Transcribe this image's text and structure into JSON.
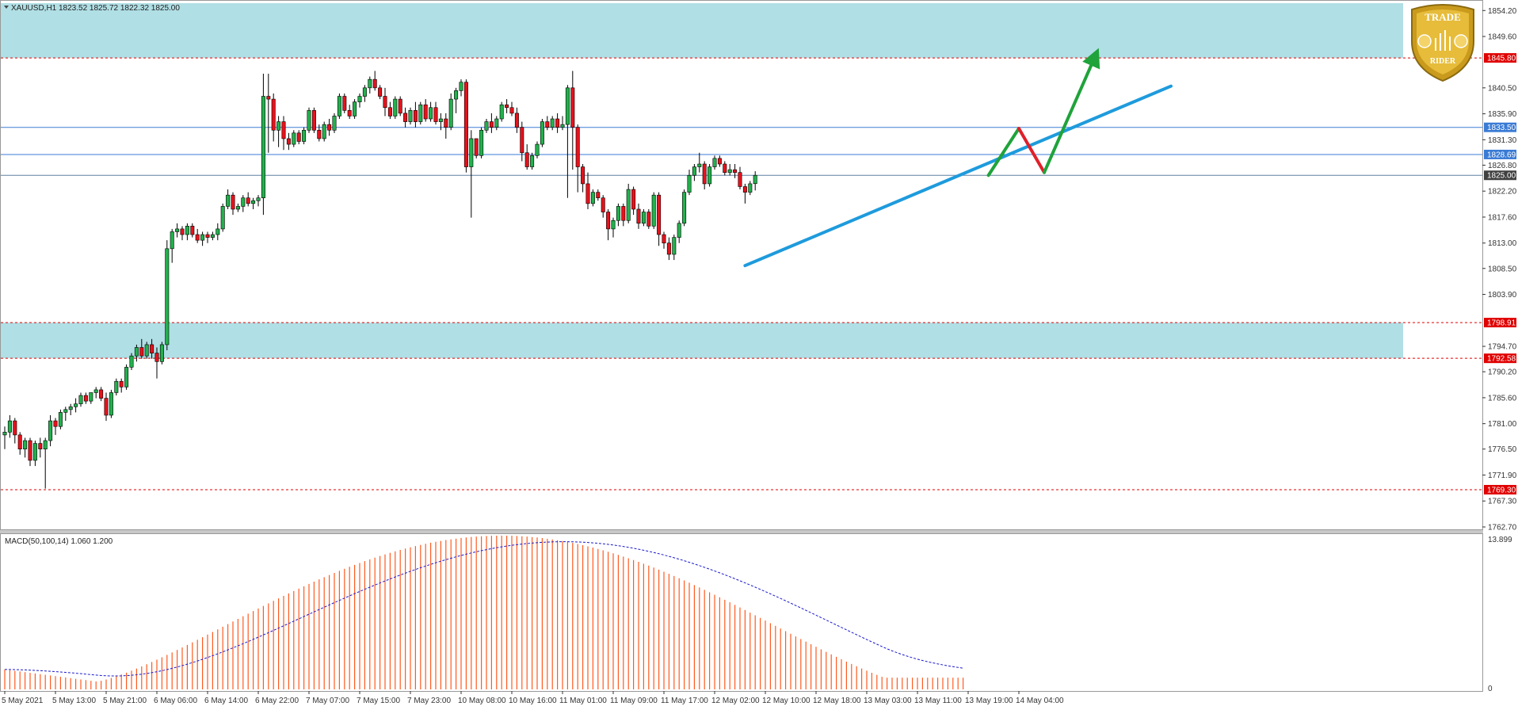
{
  "header": {
    "symbol_label": "XAUUSD,H1",
    "ohlc_label": "1823.52 1825.72 1822.32 1825.00",
    "dropdown_icon": "triangle-down-icon"
  },
  "macd": {
    "label": "MACD(50,100,14) 1.060 1.200",
    "scale_top": "13.899",
    "scale_zero": "0",
    "histogram_color": "#ff5a1f",
    "signal_color": "#1a1acc"
  },
  "price_axis": {
    "ticks": [
      "1854.20",
      "1849.60",
      "1840.50",
      "1835.90",
      "1831.30",
      "1826.80",
      "1822.20",
      "1817.60",
      "1813.00",
      "1808.50",
      "1803.90",
      "1794.70",
      "1790.20",
      "1785.60",
      "1781.00",
      "1776.50",
      "1771.90",
      "1767.30",
      "1762.70"
    ]
  },
  "price_tags": [
    {
      "label": "1845.80",
      "value": 1845.8,
      "color": "#e00000"
    },
    {
      "label": "1833.50",
      "value": 1833.5,
      "color": "#3a7bd5"
    },
    {
      "label": "1828.69",
      "value": 1828.69,
      "color": "#3a7bd5"
    },
    {
      "label": "1825.00",
      "value": 1825.0,
      "color": "#404040"
    },
    {
      "label": "1798.91",
      "value": 1798.91,
      "color": "#e00000"
    },
    {
      "label": "1792.58",
      "value": 1792.58,
      "color": "#e00000"
    },
    {
      "label": "1769.30",
      "value": 1769.3,
      "color": "#e00000"
    }
  ],
  "time_axis": {
    "labels": [
      "5 May 2021",
      "5 May 13:00",
      "5 May 21:00",
      "6 May 06:00",
      "6 May 14:00",
      "6 May 22:00",
      "7 May 07:00",
      "7 May 15:00",
      "7 May 23:00",
      "10 May 08:00",
      "10 May 16:00",
      "11 May 01:00",
      "11 May 09:00",
      "11 May 17:00",
      "12 May 02:00",
      "12 May 10:00",
      "12 May 18:00",
      "13 May 03:00",
      "13 May 11:00",
      "13 May 19:00",
      "14 May 04:00"
    ]
  },
  "zones": [
    {
      "name": "resistance-zone",
      "from": 1845.8,
      "to": 1855.5,
      "color": "#b0dfe5"
    },
    {
      "name": "support-zone",
      "from": 1792.58,
      "to": 1798.91,
      "color": "#b0dfe5"
    }
  ],
  "horizontal_lines": [
    {
      "value": 1833.5,
      "color": "#3a7bd5",
      "style": "solid"
    },
    {
      "value": 1828.69,
      "color": "#3a7bd5",
      "style": "solid"
    },
    {
      "value": 1825.0,
      "color": "#6080a0",
      "style": "solid"
    },
    {
      "value": 1769.3,
      "color": "#e00000",
      "style": "dotted"
    }
  ],
  "logo": {
    "text_top": "TRADE",
    "text_bottom": "RIDER",
    "gold": "#d4a017"
  },
  "chart_data": {
    "type": "candlestick",
    "symbol": "XAUUSD",
    "timeframe": "H1",
    "ylim": [
      1762.7,
      1855.5
    ],
    "candles": [
      [
        1779.0,
        1780.5,
        1776.5,
        1779.5
      ],
      [
        1779.5,
        1782.5,
        1778.5,
        1781.5
      ],
      [
        1781.5,
        1782.0,
        1777.5,
        1779.0
      ],
      [
        1779.0,
        1779.5,
        1775.5,
        1776.5
      ],
      [
        1776.5,
        1778.5,
        1775.0,
        1778.0
      ],
      [
        1778.0,
        1778.5,
        1773.5,
        1774.5
      ],
      [
        1774.5,
        1778.0,
        1773.5,
        1777.5
      ],
      [
        1777.5,
        1778.5,
        1775.0,
        1776.5
      ],
      [
        1776.5,
        1778.5,
        1769.5,
        1778.0
      ],
      [
        1778.0,
        1782.5,
        1777.0,
        1781.5
      ],
      [
        1781.5,
        1782.0,
        1779.0,
        1780.5
      ],
      [
        1780.5,
        1783.5,
        1780.0,
        1783.0
      ],
      [
        1783.0,
        1784.0,
        1781.5,
        1783.5
      ],
      [
        1783.5,
        1784.5,
        1782.5,
        1784.0
      ],
      [
        1784.0,
        1785.5,
        1783.0,
        1784.5
      ],
      [
        1784.5,
        1786.5,
        1784.0,
        1786.0
      ],
      [
        1786.0,
        1786.5,
        1784.5,
        1785.0
      ],
      [
        1785.0,
        1786.5,
        1784.5,
        1786.5
      ],
      [
        1786.5,
        1787.5,
        1785.5,
        1787.0
      ],
      [
        1787.0,
        1787.5,
        1785.0,
        1785.5
      ],
      [
        1785.5,
        1786.5,
        1781.5,
        1782.5
      ],
      [
        1782.5,
        1787.0,
        1782.0,
        1786.5
      ],
      [
        1786.5,
        1789.0,
        1786.0,
        1788.5
      ],
      [
        1788.5,
        1789.0,
        1786.5,
        1787.5
      ],
      [
        1787.5,
        1791.5,
        1787.0,
        1791.0
      ],
      [
        1791.0,
        1793.5,
        1790.5,
        1793.0
      ],
      [
        1793.0,
        1795.0,
        1792.0,
        1794.5
      ],
      [
        1794.5,
        1796.0,
        1792.5,
        1793.0
      ],
      [
        1793.0,
        1795.5,
        1792.5,
        1795.0
      ],
      [
        1795.0,
        1796.0,
        1792.5,
        1793.5
      ],
      [
        1793.5,
        1794.5,
        1789.0,
        1792.0
      ],
      [
        1792.0,
        1795.5,
        1791.5,
        1795.0
      ],
      [
        1795.0,
        1813.5,
        1794.0,
        1812.0
      ],
      [
        1812.0,
        1815.5,
        1809.5,
        1815.0
      ],
      [
        1815.0,
        1816.5,
        1814.0,
        1815.5
      ],
      [
        1815.5,
        1816.0,
        1813.5,
        1814.5
      ],
      [
        1814.5,
        1816.5,
        1813.5,
        1816.0
      ],
      [
        1816.0,
        1816.5,
        1814.0,
        1814.5
      ],
      [
        1814.5,
        1815.5,
        1813.0,
        1813.5
      ],
      [
        1813.5,
        1815.0,
        1812.5,
        1814.5
      ],
      [
        1814.5,
        1815.0,
        1813.0,
        1814.0
      ],
      [
        1814.0,
        1815.0,
        1813.5,
        1814.5
      ],
      [
        1814.5,
        1816.5,
        1813.5,
        1815.5
      ],
      [
        1815.5,
        1820.0,
        1815.0,
        1819.5
      ],
      [
        1819.5,
        1822.5,
        1819.0,
        1821.5
      ],
      [
        1821.5,
        1822.0,
        1818.0,
        1819.0
      ],
      [
        1819.0,
        1820.0,
        1818.5,
        1819.5
      ],
      [
        1819.5,
        1821.5,
        1818.5,
        1821.0
      ],
      [
        1821.0,
        1822.0,
        1819.5,
        1820.0
      ],
      [
        1820.0,
        1821.0,
        1819.0,
        1820.5
      ],
      [
        1820.5,
        1821.5,
        1819.5,
        1821.0
      ],
      [
        1821.0,
        1843.0,
        1818.0,
        1839.0
      ],
      [
        1839.0,
        1843.0,
        1829.0,
        1838.5
      ],
      [
        1838.5,
        1839.5,
        1831.0,
        1833.0
      ],
      [
        1833.0,
        1835.5,
        1830.0,
        1834.5
      ],
      [
        1834.5,
        1835.5,
        1829.5,
        1831.5
      ],
      [
        1831.5,
        1832.5,
        1829.5,
        1830.5
      ],
      [
        1830.5,
        1833.0,
        1830.0,
        1832.5
      ],
      [
        1832.5,
        1833.0,
        1830.5,
        1831.0
      ],
      [
        1831.0,
        1833.5,
        1830.5,
        1833.0
      ],
      [
        1833.0,
        1837.0,
        1832.5,
        1836.5
      ],
      [
        1836.5,
        1837.0,
        1832.5,
        1833.0
      ],
      [
        1833.0,
        1834.0,
        1831.0,
        1831.5
      ],
      [
        1831.5,
        1834.5,
        1831.0,
        1834.0
      ],
      [
        1834.0,
        1835.0,
        1832.0,
        1833.0
      ],
      [
        1833.0,
        1836.0,
        1832.5,
        1835.5
      ],
      [
        1835.5,
        1839.5,
        1835.0,
        1839.0
      ],
      [
        1839.0,
        1839.5,
        1836.0,
        1836.5
      ],
      [
        1836.5,
        1837.5,
        1835.0,
        1835.5
      ],
      [
        1835.5,
        1838.5,
        1835.0,
        1838.0
      ],
      [
        1838.0,
        1839.5,
        1837.0,
        1839.0
      ],
      [
        1839.0,
        1841.0,
        1838.0,
        1840.5
      ],
      [
        1840.5,
        1842.5,
        1839.5,
        1842.0
      ],
      [
        1842.0,
        1843.5,
        1840.0,
        1840.5
      ],
      [
        1840.5,
        1841.0,
        1838.5,
        1839.0
      ],
      [
        1839.0,
        1840.5,
        1835.5,
        1837.0
      ],
      [
        1837.0,
        1838.0,
        1835.0,
        1835.5
      ],
      [
        1835.5,
        1839.0,
        1835.0,
        1838.5
      ],
      [
        1838.5,
        1839.0,
        1835.5,
        1836.0
      ],
      [
        1836.0,
        1837.0,
        1833.5,
        1834.5
      ],
      [
        1834.5,
        1837.0,
        1834.0,
        1836.5
      ],
      [
        1836.5,
        1838.0,
        1833.5,
        1834.5
      ],
      [
        1834.5,
        1838.0,
        1834.0,
        1837.5
      ],
      [
        1837.5,
        1838.5,
        1834.5,
        1835.0
      ],
      [
        1835.0,
        1838.0,
        1834.5,
        1837.0
      ],
      [
        1837.0,
        1838.0,
        1834.0,
        1834.5
      ],
      [
        1834.5,
        1836.0,
        1833.0,
        1835.0
      ],
      [
        1835.0,
        1836.0,
        1831.5,
        1833.5
      ],
      [
        1833.5,
        1839.5,
        1833.0,
        1838.5
      ],
      [
        1838.5,
        1840.5,
        1836.0,
        1840.0
      ],
      [
        1840.0,
        1842.0,
        1839.0,
        1841.5
      ],
      [
        1841.5,
        1842.0,
        1825.5,
        1826.5
      ],
      [
        1826.5,
        1833.0,
        1817.5,
        1831.5
      ],
      [
        1831.5,
        1831.5,
        1828.0,
        1828.5
      ],
      [
        1828.5,
        1833.5,
        1828.0,
        1833.0
      ],
      [
        1833.0,
        1835.0,
        1832.5,
        1834.5
      ],
      [
        1834.5,
        1836.0,
        1832.5,
        1833.5
      ],
      [
        1833.5,
        1835.5,
        1833.0,
        1835.0
      ],
      [
        1835.0,
        1838.0,
        1834.5,
        1837.5
      ],
      [
        1837.5,
        1838.5,
        1836.0,
        1837.0
      ],
      [
        1837.0,
        1838.0,
        1835.5,
        1836.0
      ],
      [
        1836.0,
        1837.0,
        1832.5,
        1833.5
      ],
      [
        1833.5,
        1834.5,
        1827.5,
        1829.0
      ],
      [
        1829.0,
        1830.5,
        1826.0,
        1826.5
      ],
      [
        1826.5,
        1829.0,
        1826.0,
        1828.5
      ],
      [
        1828.5,
        1831.0,
        1828.0,
        1830.5
      ],
      [
        1830.5,
        1835.0,
        1830.0,
        1834.5
      ],
      [
        1834.5,
        1835.5,
        1833.0,
        1833.5
      ],
      [
        1833.5,
        1835.5,
        1833.0,
        1835.0
      ],
      [
        1835.0,
        1836.0,
        1832.5,
        1833.5
      ],
      [
        1833.5,
        1835.5,
        1833.0,
        1834.0
      ],
      [
        1834.0,
        1841.0,
        1821.0,
        1840.5
      ],
      [
        1840.5,
        1843.5,
        1826.0,
        1833.5
      ],
      [
        1833.5,
        1834.0,
        1822.0,
        1826.5
      ],
      [
        1826.5,
        1827.0,
        1822.0,
        1823.5
      ],
      [
        1823.5,
        1825.5,
        1819.0,
        1820.0
      ],
      [
        1820.0,
        1822.5,
        1819.5,
        1822.0
      ],
      [
        1822.0,
        1822.5,
        1820.5,
        1821.0
      ],
      [
        1821.0,
        1821.5,
        1817.5,
        1818.5
      ],
      [
        1818.5,
        1819.0,
        1813.5,
        1815.5
      ],
      [
        1815.5,
        1817.5,
        1814.0,
        1817.0
      ],
      [
        1817.0,
        1820.0,
        1816.0,
        1819.5
      ],
      [
        1819.5,
        1820.0,
        1816.0,
        1817.0
      ],
      [
        1817.0,
        1823.5,
        1816.5,
        1822.5
      ],
      [
        1822.5,
        1823.0,
        1818.0,
        1819.0
      ],
      [
        1819.0,
        1820.0,
        1815.5,
        1816.5
      ],
      [
        1816.5,
        1819.0,
        1816.0,
        1818.5
      ],
      [
        1818.5,
        1819.0,
        1815.5,
        1816.0
      ],
      [
        1816.0,
        1822.0,
        1815.5,
        1821.5
      ],
      [
        1821.5,
        1822.0,
        1812.5,
        1814.5
      ],
      [
        1814.5,
        1815.0,
        1812.0,
        1813.0
      ],
      [
        1813.0,
        1814.0,
        1810.0,
        1811.0
      ],
      [
        1811.0,
        1814.5,
        1810.0,
        1814.0
      ],
      [
        1814.0,
        1817.0,
        1813.0,
        1816.5
      ],
      [
        1816.5,
        1822.5,
        1816.0,
        1822.0
      ],
      [
        1822.0,
        1826.0,
        1821.5,
        1825.0
      ],
      [
        1825.0,
        1827.0,
        1824.0,
        1826.5
      ],
      [
        1826.5,
        1829.0,
        1825.5,
        1827.0
      ],
      [
        1827.0,
        1827.5,
        1822.5,
        1823.5
      ],
      [
        1823.5,
        1827.0,
        1823.0,
        1826.5
      ],
      [
        1826.5,
        1828.5,
        1826.0,
        1828.0
      ],
      [
        1828.0,
        1828.5,
        1826.5,
        1827.0
      ],
      [
        1827.0,
        1827.5,
        1825.0,
        1825.5
      ],
      [
        1825.5,
        1827.0,
        1825.0,
        1826.0
      ],
      [
        1826.0,
        1827.0,
        1824.5,
        1825.5
      ],
      [
        1825.5,
        1826.5,
        1822.5,
        1823.0
      ],
      [
        1823.0,
        1823.5,
        1820.0,
        1822.0
      ],
      [
        1822.0,
        1824.0,
        1821.5,
        1823.5
      ],
      [
        1823.52,
        1825.72,
        1822.32,
        1825.0
      ]
    ],
    "macd": {
      "params": "MACD(50,100,14)",
      "main": 1.06,
      "signal": 1.2,
      "ylim": [
        0,
        13.899
      ]
    },
    "annotations": [
      {
        "type": "trendline",
        "color": "#1e9bdc",
        "from": {
          "candle": 146,
          "price": 1809.0
        },
        "to": {
          "candle": 230,
          "price": 1840.8
        }
      },
      {
        "type": "arrow-path",
        "color": "#1fa33a",
        "from": {
          "candle": 194,
          "price": 1825.0
        },
        "to": {
          "candle": 200,
          "price": 1833.3
        }
      },
      {
        "type": "arrow-path",
        "color": "#e0202a",
        "from": {
          "candle": 200,
          "price": 1833.3
        },
        "to": {
          "candle": 205,
          "price": 1825.5
        }
      },
      {
        "type": "arrow",
        "color": "#1fa33a",
        "from": {
          "candle": 205,
          "price": 1825.5
        },
        "to": {
          "candle": 215,
          "price": 1846.0
        }
      }
    ]
  }
}
